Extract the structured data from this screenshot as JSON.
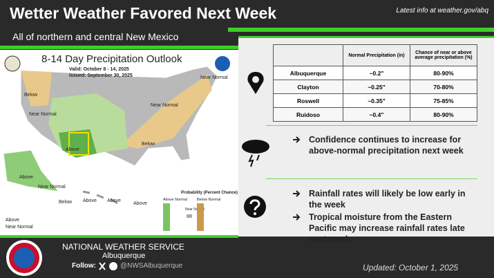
{
  "header": {
    "title": "Wetter Weather Favored Next Week",
    "link": "Latest info at weather.gov/abq",
    "subtitle": "All of northern and central New Mexico"
  },
  "map": {
    "title": "8-14 Day Precipitation Outlook",
    "valid": "Valid:  October 8 - 14, 2025",
    "issued": "Issued:  September 30, 2025",
    "labels": [
      "Below",
      "Near Normal",
      "Above",
      "Near Normal",
      "Near Normal",
      "Below",
      "Above",
      "Near Normal",
      "Below",
      "Above",
      "Above",
      "Above",
      "Above",
      "Near Normal"
    ],
    "legend_title": "Probability (Percent Chance)",
    "legend_above": "Above Normal",
    "legend_below": "Below Normal",
    "legend_near": "Near Normal"
  },
  "table": {
    "header": [
      "",
      "Normal Precipitation (in)",
      "Chance of near or above average precipitation (%)"
    ],
    "rows": [
      [
        "Albuquerque",
        "~0.2\"",
        "80-90%"
      ],
      [
        "Clayton",
        "~0.25\"",
        "70-80%"
      ],
      [
        "Roswell",
        "~0.35\"",
        "75-85%"
      ],
      [
        "Ruidoso",
        "~0.4\"",
        "80-90%"
      ]
    ]
  },
  "bullets": [
    "Confidence continues to increase for above-normal precipitation next week",
    "Rainfall rates will likely be low early in the week",
    "Tropical moisture from the Eastern Pacific may increase rainfall rates late next week"
  ],
  "footer": {
    "agency": "NATIONAL WEATHER SERVICE",
    "office": "Albuquerque",
    "follow": "Follow:",
    "handle": "@NWSAlbuquerque",
    "updated": "Updated: October 1, 2025"
  }
}
